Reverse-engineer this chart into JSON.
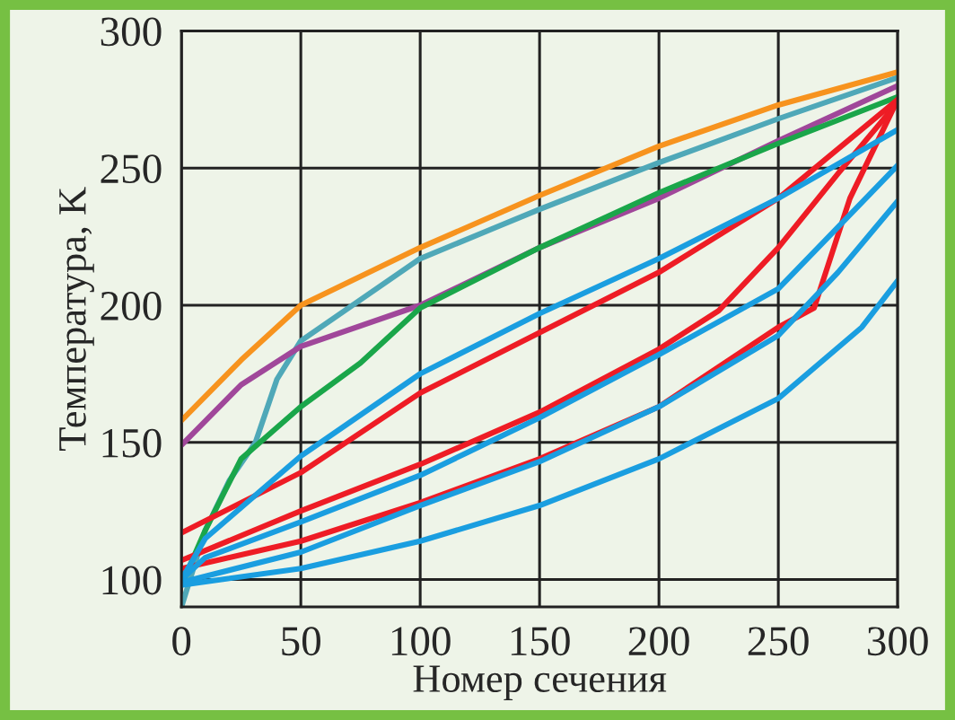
{
  "chart_data": {
    "type": "line",
    "xlabel": "Номер сечения",
    "ylabel": "Температура, K",
    "xlim": [
      0,
      300
    ],
    "ylim": [
      90,
      300
    ],
    "xticks": [
      0,
      50,
      100,
      150,
      200,
      250,
      300
    ],
    "yticks": [
      100,
      150,
      200,
      250,
      300
    ],
    "grid": true,
    "marker": "none",
    "line_style": "solid",
    "series": [
      {
        "color": "#f7931e",
        "x": [
          0,
          25,
          50,
          100,
          150,
          200,
          250,
          300
        ],
        "values": [
          158,
          180,
          200,
          221,
          240,
          258,
          273,
          285
        ]
      },
      {
        "color": "#4fa8b8",
        "x": [
          0,
          10,
          20,
          31,
          40,
          50,
          100,
          150,
          200,
          250,
          300
        ],
        "values": [
          90,
          118,
          136,
          150,
          173,
          187,
          217,
          235,
          252,
          268,
          283
        ]
      },
      {
        "color": "#a0479a",
        "x": [
          0,
          25,
          50,
          100,
          150,
          200,
          250,
          300
        ],
        "values": [
          149,
          171,
          185,
          200,
          221,
          239,
          260,
          280
        ]
      },
      {
        "color": "#1aa64a",
        "x": [
          0,
          10,
          25,
          50,
          75,
          100,
          150,
          200,
          250,
          300
        ],
        "values": [
          98,
          118,
          144,
          163,
          179,
          199,
          221,
          241,
          259,
          276
        ]
      },
      {
        "color": "#ee1c25",
        "x": [
          0,
          50,
          100,
          150,
          200,
          250,
          300
        ],
        "values": [
          117,
          139,
          168,
          190,
          212,
          239,
          275
        ]
      },
      {
        "color": "#ee1c25",
        "x": [
          0,
          50,
          100,
          150,
          200,
          225,
          250,
          275,
          300
        ],
        "values": [
          107,
          125,
          142,
          161,
          184,
          198,
          221,
          248,
          274
        ]
      },
      {
        "color": "#ee1c25",
        "x": [
          0,
          50,
          100,
          150,
          200,
          250,
          265,
          280,
          300
        ],
        "values": [
          104,
          114,
          128,
          144,
          163,
          192,
          199,
          239,
          275
        ]
      },
      {
        "color": "#1a9ee0",
        "x": [
          0,
          10,
          50,
          100,
          150,
          200,
          250,
          300
        ],
        "values": [
          100,
          115,
          145,
          175,
          197,
          217,
          239,
          264
        ]
      },
      {
        "color": "#1a9ee0",
        "x": [
          0,
          10,
          50,
          100,
          150,
          200,
          250,
          300
        ],
        "values": [
          100,
          108,
          121,
          138,
          159,
          182,
          206,
          251
        ]
      },
      {
        "color": "#1a9ee0",
        "x": [
          0,
          50,
          100,
          150,
          200,
          250,
          275,
          300
        ],
        "values": [
          99,
          110,
          127,
          143,
          163,
          189,
          212,
          238
        ]
      },
      {
        "color": "#1a9ee0",
        "x": [
          0,
          50,
          100,
          150,
          200,
          250,
          285,
          300
        ],
        "values": [
          98,
          104,
          114,
          127,
          144,
          166,
          192,
          209
        ]
      }
    ]
  }
}
